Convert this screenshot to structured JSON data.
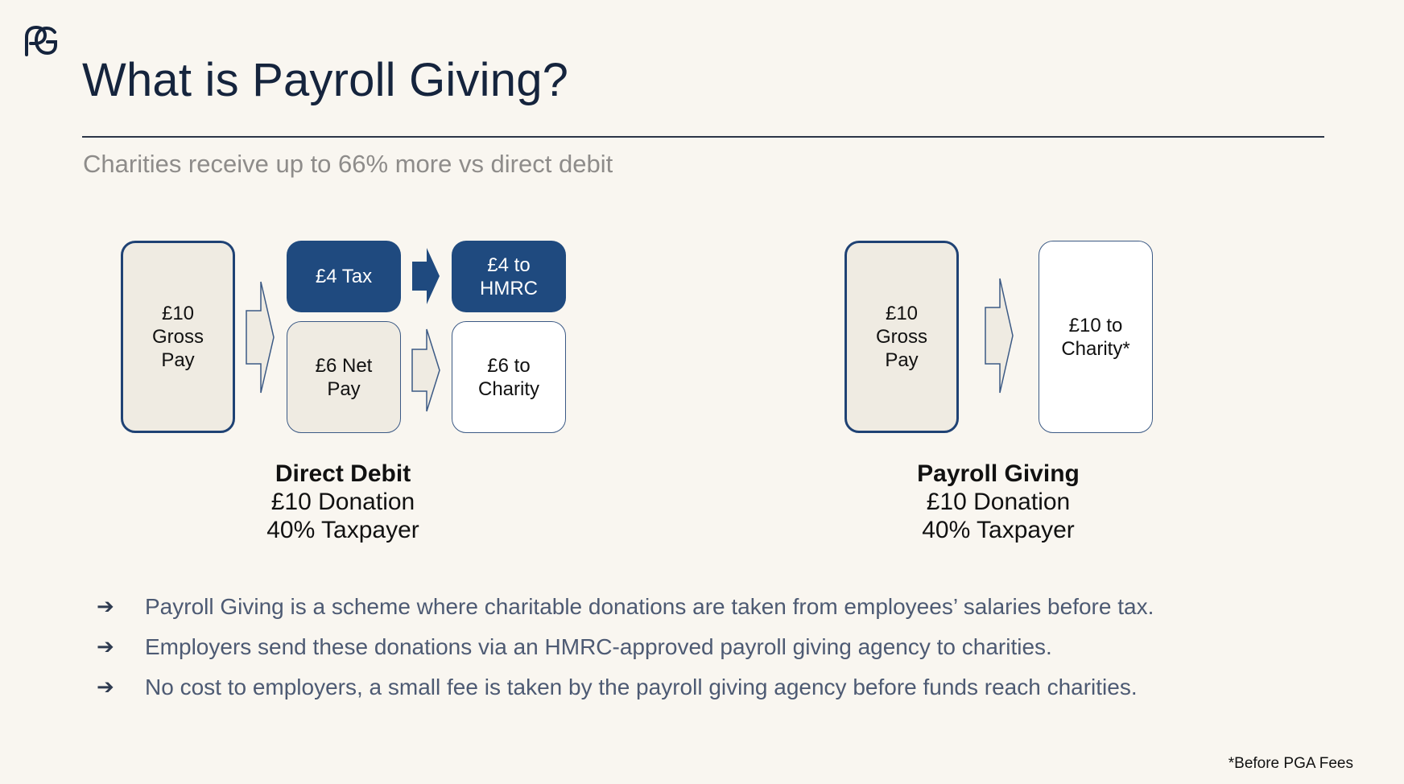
{
  "logo": {
    "name": "pg-logo"
  },
  "header": {
    "title": "What is Payroll Giving?",
    "subtitle": "Charities receive up to 66% more vs direct debit"
  },
  "direct_debit": {
    "gross_pay": "£10 Gross Pay",
    "tax": "£4 Tax",
    "net_pay": "£6 Net Pay",
    "to_hmrc": "£4 to HMRC",
    "to_charity": "£6 to Charity",
    "caption_title": "Direct Debit",
    "caption_line1": "£10 Donation",
    "caption_line2": "40% Taxpayer"
  },
  "payroll_giving": {
    "gross_pay": "£10 Gross Pay",
    "to_charity": "£10 to Charity*",
    "caption_title": "Payroll Giving",
    "caption_line1": "£10 Donation",
    "caption_line2": "40% Taxpayer"
  },
  "bullets": [
    {
      "marker": "➔",
      "text": "Payroll Giving is a scheme where charitable donations are taken from employees’ salaries before tax."
    },
    {
      "marker": "➔",
      "text": "Employers send these donations via an HMRC-approved payroll giving agency to charities."
    },
    {
      "marker": "➔",
      "text": "No cost to employers, a small fee is taken by the payroll giving agency before funds reach charities."
    }
  ],
  "footnote": "*Before PGA Fees",
  "colors": {
    "navy": "#1f4a7f",
    "beige": "#efebe2",
    "background": "#f9f6f0"
  }
}
